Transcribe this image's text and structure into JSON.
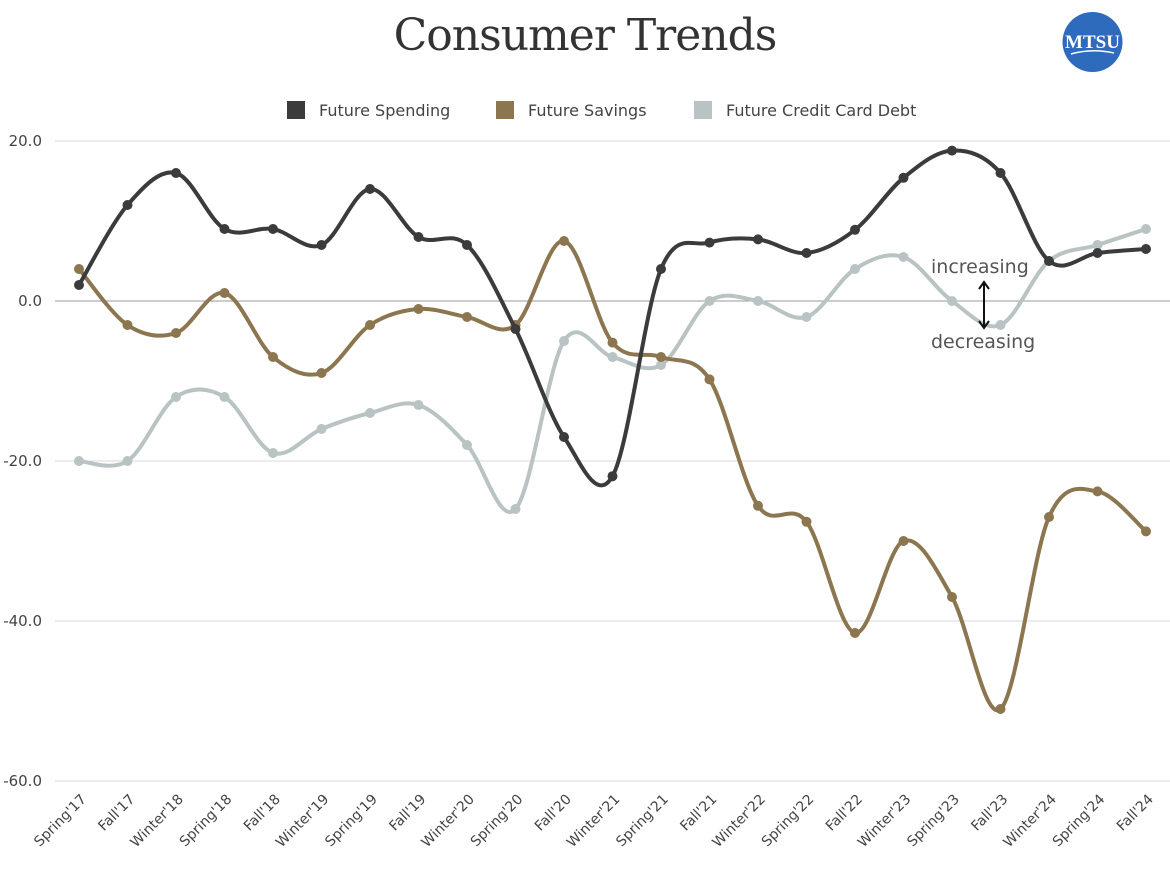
{
  "logo_text": "MTSU",
  "colors": {
    "spending": "#3b3b3b",
    "savings": "#8b7650",
    "credit": "#b9c3c3",
    "logo": "#2f6bbd"
  },
  "chart_data": {
    "type": "line",
    "title": "Consumer Trends",
    "xlabel": "",
    "ylabel": "",
    "ylim": [
      -60,
      20
    ],
    "yticks": [
      "20.0",
      "0.0",
      "-20.0",
      "-40.0",
      "-60.0"
    ],
    "ytick_values": [
      20,
      0,
      -20,
      -40,
      -60
    ],
    "grid": true,
    "smooth": true,
    "legend_position": "top",
    "categories": [
      "Spring'17",
      "Fall'17",
      "Winter'18",
      "Spring'18",
      "Fall'18",
      "Winter'19",
      "Spring'19",
      "Fall'19",
      "Winter'20",
      "Spring'20",
      "Fall'20",
      "Winter'21",
      "Spring'21",
      "Fall'21",
      "Winter'22",
      "Spring'22",
      "Fall'22",
      "Winter'23",
      "Spring'23",
      "Fall'23",
      "Winter'24",
      "Spring'24",
      "Fall'24"
    ],
    "series": [
      {
        "name": "Future Spending",
        "key": "spending",
        "values": [
          2,
          12,
          16,
          9,
          9,
          7,
          14,
          8,
          7,
          -3.5,
          -17,
          -21.9,
          4,
          7.3,
          7.7,
          6,
          8.9,
          15.4,
          18.8,
          16,
          5,
          6,
          6.5
        ]
      },
      {
        "name": "Future Savings",
        "key": "savings",
        "values": [
          4,
          -3,
          -4,
          1,
          -7,
          -9,
          -3,
          -1,
          -2,
          -3,
          7.5,
          -5.2,
          -7,
          -9.8,
          -25.6,
          -27.6,
          -41.5,
          -30,
          -37,
          -51,
          -27,
          -23.8,
          -28.8
        ]
      },
      {
        "name": "Future Credit Card Debt",
        "key": "credit",
        "values": [
          -20,
          -20,
          -12,
          -12,
          -19,
          -16,
          -14,
          -13,
          -18,
          -26,
          -5,
          -7,
          -8,
          0,
          0,
          -2,
          4,
          5.5,
          0,
          -3,
          5,
          7,
          9
        ]
      }
    ],
    "annotations": {
      "up": "increasing",
      "down": "decreasing"
    }
  }
}
